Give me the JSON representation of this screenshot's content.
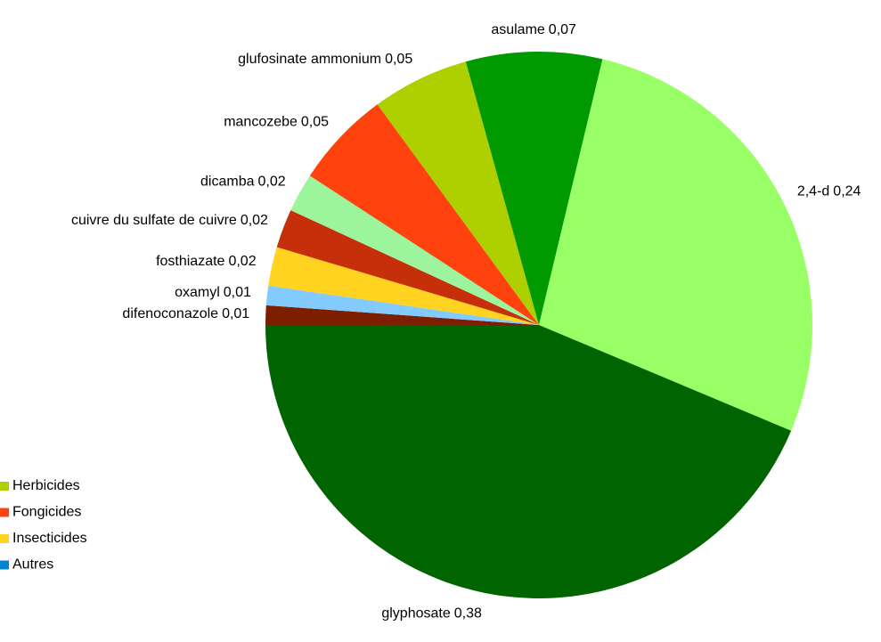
{
  "chart_data": {
    "type": "pie",
    "categories": [
      "difenoconazole",
      "oxamyl",
      "fosthiazate",
      "cuivre du sulfate de cuivre",
      "dicamba",
      "mancozebe",
      "glufosinate ammonium",
      "asulame",
      "2,4-d",
      "glyphosate"
    ],
    "values": [
      0.01,
      0.01,
      0.02,
      0.02,
      0.02,
      0.05,
      0.05,
      0.07,
      0.24,
      0.38
    ],
    "value_labels": [
      "0,01",
      "0,01",
      "0,02",
      "0,02",
      "0,02",
      "0,05",
      "0,05",
      "0,07",
      "0,24",
      "0,38"
    ],
    "colors": [
      "#7e1e00",
      "#83caff",
      "#ffd320",
      "#c5300a",
      "#9cf59c",
      "#ff420e",
      "#aecf00",
      "#009900",
      "#99ff66",
      "#006400"
    ],
    "legend": [
      {
        "name": "Herbicides",
        "color": "#aecf00"
      },
      {
        "name": "Fongicides",
        "color": "#ff420e"
      },
      {
        "name": "Insecticides",
        "color": "#ffd320"
      },
      {
        "name": "Autres",
        "color": "#0084d1"
      }
    ]
  }
}
